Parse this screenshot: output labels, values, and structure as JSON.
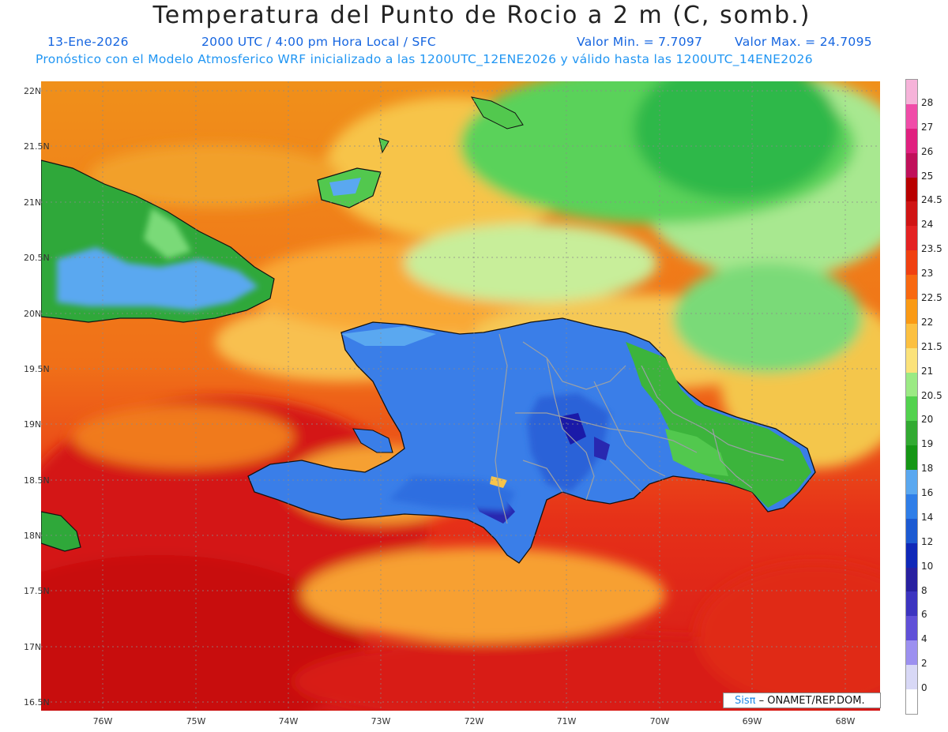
{
  "header": {
    "title": "Temperatura del Punto de Rocio a 2 m (C, somb.)",
    "date": "13-Ene-2026",
    "time": "2000 UTC / 4:00 pm Hora Local / SFC",
    "min": "Valor Min. = 7.7097",
    "max": "Valor Max. = 24.7095",
    "forecast": "Pronóstico con el Modelo Atmosferico WRF inicializado a las 1200UTC_12ENE2026 y válido hasta las  1200UTC_14ENE2026"
  },
  "axes": {
    "lat_labels": [
      "22N",
      "21.5N",
      "21N",
      "20.5N",
      "20N",
      "19.5N",
      "19N",
      "18.5N",
      "18N",
      "17.5N",
      "17N",
      "16.5N"
    ],
    "lon_labels": [
      "76W",
      "75W",
      "74W",
      "73W",
      "72W",
      "71W",
      "70W",
      "69W",
      "68W"
    ]
  },
  "colorbar": {
    "labels": [
      "28",
      "27",
      "26",
      "25",
      "24.5",
      "24",
      "23.5",
      "23",
      "22.5",
      "22",
      "21.5",
      "21",
      "20.5",
      "20",
      "19",
      "18",
      "16",
      "14",
      "12",
      "10",
      "8",
      "6",
      "4",
      "2",
      "0"
    ],
    "colors": [
      "#f6b3d9",
      "#f04ca8",
      "#e0207f",
      "#c0105a",
      "#b80000",
      "#d01414",
      "#e42222",
      "#f04010",
      "#f86810",
      "#fa9a14",
      "#fcc040",
      "#fbe27a",
      "#9bea84",
      "#52d24e",
      "#32aa32",
      "#159615",
      "#5aa8f0",
      "#2f7ee8",
      "#1c5ad2",
      "#0f28b8",
      "#2820a0",
      "#3c34c0",
      "#6050d8",
      "#9c90f0",
      "#d8d8f6",
      "#ffffff"
    ]
  },
  "credit": {
    "brand": "Sisπ",
    "text": "– ONAMET/REP.DOM."
  }
}
